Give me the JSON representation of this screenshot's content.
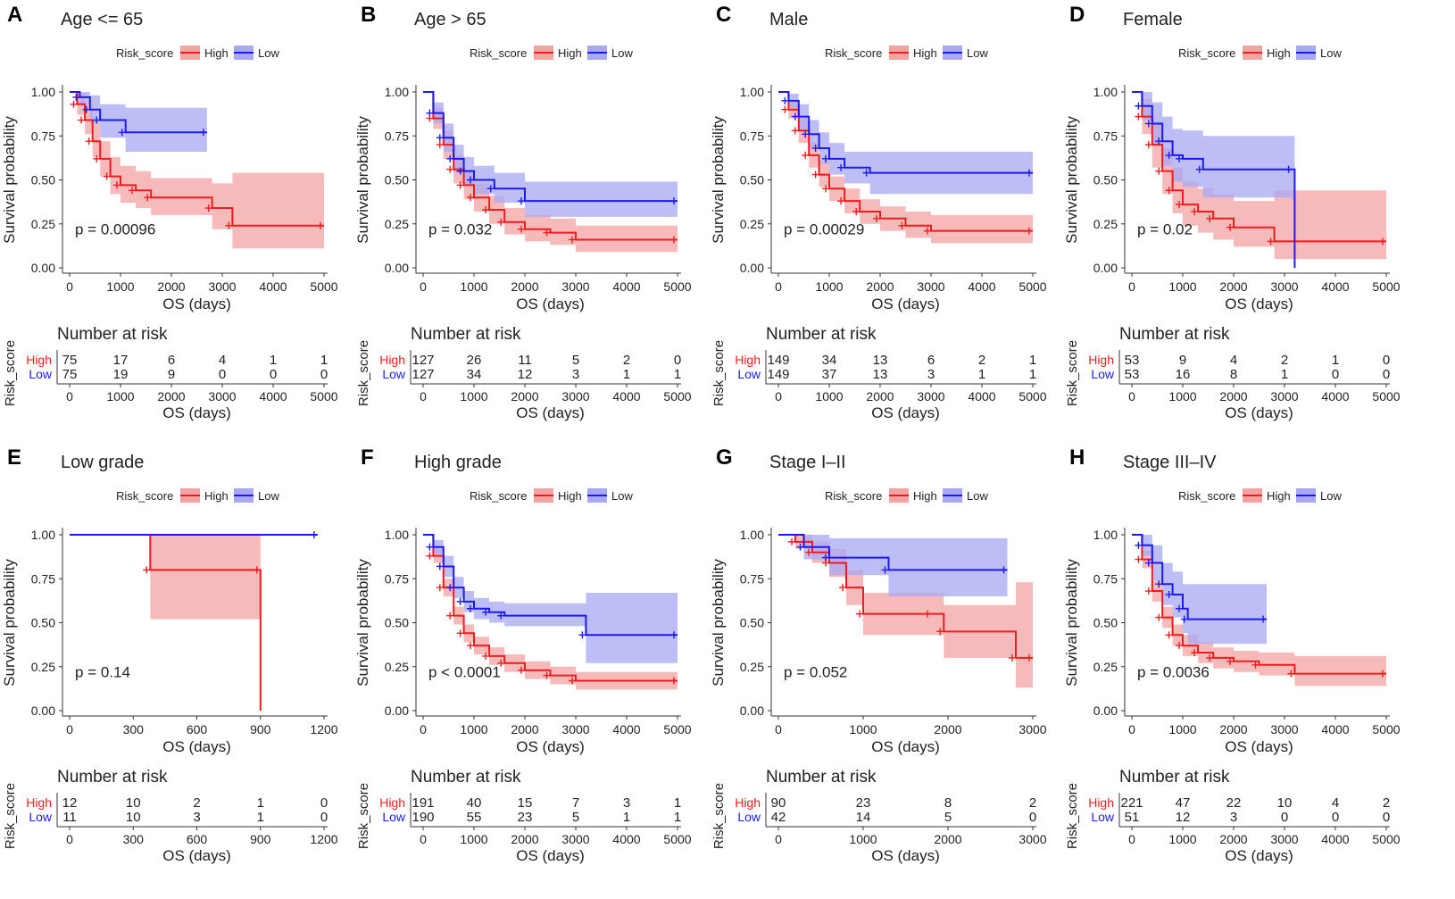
{
  "figure": {
    "legend_title": "Risk_score",
    "group_labels": [
      "High",
      "Low"
    ],
    "y_axis_label": "Survival probability",
    "x_axis_label": "OS (days)",
    "risk_title": "Number at risk",
    "risk_strata_label": "Risk_score",
    "colors": {
      "High": "#ee1c1c",
      "Low": "#1a1aee",
      "High_band": "#f4a3a3",
      "Low_band": "#a8a8f4"
    }
  },
  "chart_data": [
    {
      "panel": "A",
      "title": "Age <= 65",
      "type": "line",
      "xlim": [
        0,
        5000
      ],
      "ylim": [
        0,
        1
      ],
      "x_ticks": [
        "0",
        "1000",
        "2000",
        "3000",
        "4000",
        "5000"
      ],
      "y_ticks": [
        "0.00",
        "0.25",
        "0.50",
        "0.75",
        "1.00"
      ],
      "p_value": "p = 0.00096",
      "series": [
        {
          "name": "High",
          "x": [
            0,
            150,
            300,
            450,
            600,
            800,
            1000,
            1300,
            1600,
            2800,
            3200,
            5000
          ],
          "y": [
            1.0,
            0.93,
            0.84,
            0.72,
            0.62,
            0.52,
            0.47,
            0.44,
            0.4,
            0.34,
            0.24,
            0.24
          ],
          "lower": [
            1.0,
            0.87,
            0.76,
            0.63,
            0.52,
            0.42,
            0.37,
            0.34,
            0.3,
            0.22,
            0.11,
            0.11
          ],
          "upper": [
            1.0,
            0.99,
            0.93,
            0.82,
            0.72,
            0.63,
            0.58,
            0.55,
            0.51,
            0.48,
            0.54,
            0.54
          ]
        },
        {
          "name": "Low",
          "x": [
            0,
            200,
            400,
            600,
            1100,
            2700
          ],
          "y": [
            1.0,
            0.97,
            0.9,
            0.84,
            0.77,
            0.77
          ],
          "lower": [
            1.0,
            0.93,
            0.82,
            0.74,
            0.66,
            0.66
          ],
          "upper": [
            1.0,
            1.0,
            0.98,
            0.93,
            0.91,
            0.91
          ]
        }
      ],
      "risk_ticks": [
        "0",
        "1000",
        "2000",
        "3000",
        "4000",
        "5000"
      ],
      "risk_table": {
        "High": [
          "75",
          "17",
          "6",
          "4",
          "1",
          "1"
        ],
        "Low": [
          "75",
          "19",
          "9",
          "0",
          "0",
          "0"
        ]
      }
    },
    {
      "panel": "B",
      "title": "Age > 65",
      "type": "line",
      "xlim": [
        0,
        5000
      ],
      "ylim": [
        0,
        1
      ],
      "x_ticks": [
        "0",
        "1000",
        "2000",
        "3000",
        "4000",
        "5000"
      ],
      "y_ticks": [
        "0.00",
        "0.25",
        "0.50",
        "0.75",
        "1.00"
      ],
      "p_value": "p = 0.032",
      "series": [
        {
          "name": "High",
          "x": [
            0,
            200,
            400,
            600,
            800,
            1000,
            1300,
            1600,
            2000,
            2500,
            3000,
            5000
          ],
          "y": [
            1.0,
            0.85,
            0.7,
            0.56,
            0.47,
            0.4,
            0.33,
            0.26,
            0.22,
            0.2,
            0.16,
            0.16
          ],
          "lower": [
            1.0,
            0.79,
            0.62,
            0.48,
            0.39,
            0.32,
            0.25,
            0.19,
            0.15,
            0.13,
            0.09,
            0.09
          ],
          "upper": [
            1.0,
            0.91,
            0.78,
            0.64,
            0.55,
            0.48,
            0.41,
            0.34,
            0.3,
            0.28,
            0.24,
            0.24
          ]
        },
        {
          "name": "Low",
          "x": [
            0,
            200,
            400,
            600,
            800,
            1000,
            1400,
            2000,
            5000
          ],
          "y": [
            1.0,
            0.88,
            0.74,
            0.62,
            0.55,
            0.5,
            0.45,
            0.38,
            0.38
          ],
          "lower": [
            1.0,
            0.82,
            0.66,
            0.54,
            0.47,
            0.42,
            0.37,
            0.29,
            0.29
          ],
          "upper": [
            1.0,
            0.94,
            0.82,
            0.7,
            0.63,
            0.58,
            0.54,
            0.49,
            0.49
          ]
        }
      ],
      "risk_ticks": [
        "0",
        "1000",
        "2000",
        "3000",
        "4000",
        "5000"
      ],
      "risk_table": {
        "High": [
          "127",
          "26",
          "11",
          "5",
          "2",
          "0"
        ],
        "Low": [
          "127",
          "34",
          "12",
          "3",
          "1",
          "1"
        ]
      }
    },
    {
      "panel": "C",
      "title": "Male",
      "type": "line",
      "xlim": [
        0,
        5000
      ],
      "ylim": [
        0,
        1
      ],
      "x_ticks": [
        "0",
        "1000",
        "2000",
        "3000",
        "4000",
        "5000"
      ],
      "y_ticks": [
        "0.00",
        "0.25",
        "0.50",
        "0.75",
        "1.00"
      ],
      "p_value": "p = 0.00029",
      "series": [
        {
          "name": "High",
          "x": [
            0,
            200,
            400,
            600,
            800,
            1000,
            1300,
            1600,
            2000,
            2500,
            3000,
            5000
          ],
          "y": [
            1.0,
            0.9,
            0.78,
            0.64,
            0.53,
            0.45,
            0.38,
            0.32,
            0.28,
            0.24,
            0.21,
            0.21
          ],
          "lower": [
            1.0,
            0.85,
            0.71,
            0.57,
            0.46,
            0.38,
            0.31,
            0.25,
            0.21,
            0.17,
            0.14,
            0.14
          ],
          "upper": [
            1.0,
            0.95,
            0.85,
            0.71,
            0.6,
            0.52,
            0.45,
            0.39,
            0.35,
            0.32,
            0.3,
            0.3
          ]
        },
        {
          "name": "Low",
          "x": [
            0,
            200,
            400,
            600,
            800,
            1000,
            1300,
            1800,
            5000
          ],
          "y": [
            1.0,
            0.95,
            0.86,
            0.76,
            0.68,
            0.62,
            0.57,
            0.54,
            0.54
          ],
          "lower": [
            1.0,
            0.91,
            0.79,
            0.68,
            0.59,
            0.53,
            0.48,
            0.42,
            0.42
          ],
          "upper": [
            1.0,
            0.99,
            0.93,
            0.84,
            0.77,
            0.71,
            0.66,
            0.66,
            0.66
          ]
        }
      ],
      "risk_ticks": [
        "0",
        "1000",
        "2000",
        "3000",
        "4000",
        "5000"
      ],
      "risk_table": {
        "High": [
          "149",
          "34",
          "13",
          "6",
          "2",
          "1"
        ],
        "Low": [
          "149",
          "37",
          "13",
          "3",
          "1",
          "1"
        ]
      }
    },
    {
      "panel": "D",
      "title": "Female",
      "type": "line",
      "xlim": [
        0,
        5000
      ],
      "ylim": [
        0,
        1
      ],
      "x_ticks": [
        "0",
        "1000",
        "2000",
        "3000",
        "4000",
        "5000"
      ],
      "y_ticks": [
        "0.00",
        "0.25",
        "0.50",
        "0.75",
        "1.00"
      ],
      "p_value": "p = 0.02",
      "series": [
        {
          "name": "High",
          "x": [
            0,
            200,
            400,
            600,
            800,
            1000,
            1300,
            1600,
            2000,
            2800,
            5000
          ],
          "y": [
            1.0,
            0.86,
            0.7,
            0.55,
            0.44,
            0.36,
            0.32,
            0.28,
            0.23,
            0.15,
            0.15
          ],
          "lower": [
            1.0,
            0.76,
            0.57,
            0.42,
            0.31,
            0.24,
            0.2,
            0.16,
            0.12,
            0.05,
            0.05
          ],
          "upper": [
            1.0,
            0.96,
            0.83,
            0.68,
            0.57,
            0.49,
            0.45,
            0.42,
            0.38,
            0.44,
            0.44
          ]
        },
        {
          "name": "Low",
          "x": [
            0,
            200,
            400,
            600,
            800,
            1000,
            1400,
            3150,
            3200
          ],
          "y": [
            1.0,
            0.92,
            0.82,
            0.72,
            0.64,
            0.62,
            0.56,
            0.56,
            0.0
          ],
          "lower": [
            1.0,
            0.84,
            0.7,
            0.58,
            0.49,
            0.46,
            0.4,
            0.38,
            0.0
          ],
          "upper": [
            1.0,
            1.0,
            0.94,
            0.86,
            0.79,
            0.78,
            0.75,
            0.75,
            0.0
          ]
        }
      ],
      "risk_ticks": [
        "0",
        "1000",
        "2000",
        "3000",
        "4000",
        "5000"
      ],
      "risk_table": {
        "High": [
          "53",
          "9",
          "4",
          "2",
          "1",
          "0"
        ],
        "Low": [
          "53",
          "16",
          "8",
          "1",
          "0",
          "0"
        ]
      }
    },
    {
      "panel": "E",
      "title": "Low grade",
      "type": "line",
      "xlim": [
        0,
        1200
      ],
      "ylim": [
        0,
        1
      ],
      "x_ticks": [
        "0",
        "300",
        "600",
        "900",
        "1200"
      ],
      "y_ticks": [
        "0.00",
        "0.25",
        "0.50",
        "0.75",
        "1.00"
      ],
      "p_value": "p = 0.14",
      "series": [
        {
          "name": "High",
          "x": [
            0,
            380,
            900,
            900
          ],
          "y": [
            1.0,
            0.8,
            0.8,
            0.0
          ],
          "lower": [
            1.0,
            0.52,
            0.52,
            0.0
          ],
          "upper": [
            1.0,
            1.0,
            1.0,
            0.0
          ]
        },
        {
          "name": "Low",
          "x": [
            0,
            1170
          ],
          "y": [
            1.0,
            1.0
          ],
          "lower": [
            1.0,
            1.0
          ],
          "upper": [
            1.0,
            1.0
          ]
        }
      ],
      "risk_ticks": [
        "0",
        "300",
        "600",
        "900",
        "1200"
      ],
      "risk_table": {
        "High": [
          "12",
          "10",
          "2",
          "1",
          "0"
        ],
        "Low": [
          "11",
          "10",
          "3",
          "1",
          "0"
        ]
      }
    },
    {
      "panel": "F",
      "title": "High grade",
      "type": "line",
      "xlim": [
        0,
        5000
      ],
      "ylim": [
        0,
        1
      ],
      "x_ticks": [
        "0",
        "1000",
        "2000",
        "3000",
        "4000",
        "5000"
      ],
      "y_ticks": [
        "0.00",
        "0.25",
        "0.50",
        "0.75",
        "1.00"
      ],
      "p_value": "p < 0.0001",
      "series": [
        {
          "name": "High",
          "x": [
            0,
            200,
            400,
            600,
            800,
            1000,
            1300,
            1600,
            2000,
            2500,
            3000,
            5000
          ],
          "y": [
            1.0,
            0.88,
            0.7,
            0.54,
            0.44,
            0.37,
            0.31,
            0.27,
            0.23,
            0.2,
            0.17,
            0.17
          ],
          "lower": [
            1.0,
            0.84,
            0.65,
            0.49,
            0.39,
            0.32,
            0.26,
            0.22,
            0.18,
            0.15,
            0.12,
            0.12
          ],
          "upper": [
            1.0,
            0.92,
            0.75,
            0.59,
            0.49,
            0.42,
            0.36,
            0.32,
            0.28,
            0.25,
            0.22,
            0.22
          ]
        },
        {
          "name": "Low",
          "x": [
            0,
            200,
            400,
            600,
            800,
            1000,
            1300,
            1600,
            3200,
            5000
          ],
          "y": [
            1.0,
            0.93,
            0.82,
            0.7,
            0.62,
            0.58,
            0.56,
            0.54,
            0.43,
            0.43
          ],
          "lower": [
            1.0,
            0.89,
            0.76,
            0.64,
            0.56,
            0.52,
            0.5,
            0.48,
            0.27,
            0.27
          ],
          "upper": [
            1.0,
            0.97,
            0.88,
            0.76,
            0.68,
            0.64,
            0.62,
            0.61,
            0.67,
            0.67
          ]
        }
      ],
      "risk_ticks": [
        "0",
        "1000",
        "2000",
        "3000",
        "4000",
        "5000"
      ],
      "risk_table": {
        "High": [
          "191",
          "40",
          "15",
          "7",
          "3",
          "1"
        ],
        "Low": [
          "190",
          "55",
          "23",
          "5",
          "1",
          "1"
        ]
      }
    },
    {
      "panel": "G",
      "title": "Stage I–II",
      "type": "line",
      "xlim": [
        0,
        3000
      ],
      "ylim": [
        0,
        1
      ],
      "x_ticks": [
        "0",
        "1000",
        "2000",
        "3000"
      ],
      "y_ticks": [
        "0.00",
        "0.25",
        "0.50",
        "0.75",
        "1.00"
      ],
      "p_value": "p = 0.052",
      "series": [
        {
          "name": "High",
          "x": [
            0,
            200,
            400,
            600,
            800,
            1000,
            1800,
            1950,
            2800,
            3000
          ],
          "y": [
            1.0,
            0.96,
            0.9,
            0.84,
            0.7,
            0.55,
            0.55,
            0.45,
            0.3,
            0.3
          ],
          "lower": [
            1.0,
            0.92,
            0.84,
            0.76,
            0.6,
            0.43,
            0.43,
            0.3,
            0.13,
            0.13
          ],
          "upper": [
            1.0,
            1.0,
            0.96,
            0.92,
            0.8,
            0.67,
            0.67,
            0.6,
            0.73,
            0.73
          ]
        },
        {
          "name": "Low",
          "x": [
            0,
            300,
            600,
            1300,
            2700
          ],
          "y": [
            1.0,
            0.93,
            0.87,
            0.8,
            0.8
          ],
          "lower": [
            1.0,
            0.86,
            0.77,
            0.65,
            0.65
          ],
          "upper": [
            1.0,
            1.0,
            0.98,
            0.98,
            0.98
          ]
        }
      ],
      "risk_ticks": [
        "0",
        "1000",
        "2000",
        "3000"
      ],
      "risk_table": {
        "High": [
          "90",
          "23",
          "8",
          "2"
        ],
        "Low": [
          "42",
          "14",
          "5",
          "0"
        ]
      }
    },
    {
      "panel": "H",
      "title": "Stage III–IV",
      "type": "line",
      "xlim": [
        0,
        5000
      ],
      "ylim": [
        0,
        1
      ],
      "x_ticks": [
        "0",
        "1000",
        "2000",
        "3000",
        "4000",
        "5000"
      ],
      "y_ticks": [
        "0.00",
        "0.25",
        "0.50",
        "0.75",
        "1.00"
      ],
      "p_value": "p = 0.0036",
      "series": [
        {
          "name": "High",
          "x": [
            0,
            200,
            400,
            600,
            800,
            1000,
            1300,
            1600,
            2000,
            2500,
            3200,
            5000
          ],
          "y": [
            1.0,
            0.86,
            0.68,
            0.53,
            0.43,
            0.37,
            0.33,
            0.3,
            0.28,
            0.26,
            0.21,
            0.21
          ],
          "lower": [
            1.0,
            0.81,
            0.62,
            0.47,
            0.37,
            0.31,
            0.27,
            0.24,
            0.22,
            0.2,
            0.14,
            0.14
          ],
          "upper": [
            1.0,
            0.91,
            0.74,
            0.59,
            0.49,
            0.43,
            0.39,
            0.36,
            0.34,
            0.33,
            0.31,
            0.31
          ]
        },
        {
          "name": "Low",
          "x": [
            0,
            200,
            400,
            600,
            800,
            1000,
            1100,
            2650
          ],
          "y": [
            1.0,
            0.94,
            0.84,
            0.72,
            0.66,
            0.58,
            0.52,
            0.52
          ],
          "lower": [
            1.0,
            0.88,
            0.74,
            0.6,
            0.53,
            0.44,
            0.38,
            0.38
          ],
          "upper": [
            1.0,
            1.0,
            0.94,
            0.84,
            0.79,
            0.72,
            0.72,
            0.72
          ]
        }
      ],
      "risk_ticks": [
        "0",
        "1000",
        "2000",
        "3000",
        "4000",
        "5000"
      ],
      "risk_table": {
        "High": [
          "221",
          "47",
          "22",
          "10",
          "4",
          "2"
        ],
        "Low": [
          "51",
          "12",
          "3",
          "0",
          "0",
          "0"
        ]
      }
    }
  ]
}
